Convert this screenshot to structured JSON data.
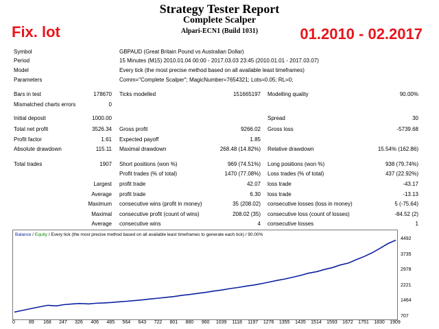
{
  "header": {
    "title": "Strategy Tester Report",
    "subtitle": "Complete Scalper",
    "server": "Alpari-ECN1 (Build 1031)"
  },
  "overlays": {
    "left": "Fix. lot",
    "right": "01.2010 - 02.2017"
  },
  "info": {
    "symbol_label": "Symbol",
    "symbol_value": "GBPAUD (Great Britain Pound vs Australian Dollar)",
    "period_label": "Period",
    "period_value": "15 Minutes (M15) 2010.01.04 00:00 - 2017.03.03 23:45 (2010.01.01 - 2017.03.07)",
    "model_label": "Model",
    "model_value": "Every tick (the most precise method based on all available least timeframes)",
    "parameters_label": "Parameters",
    "parameters_value": "Comm=\"Complete Scalper\"; MagicNumber=7654321; Lots=0.05; RL=0;"
  },
  "stats": {
    "bars_label": "Bars in test",
    "bars_value": "178670",
    "ticks_label": "Ticks modelled",
    "ticks_value": "151665197",
    "quality_label": "Modelling quality",
    "quality_value": "90.00%",
    "mismatch_label": "Mismatched charts errors",
    "mismatch_value": "0",
    "deposit_label": "Initial deposit",
    "deposit_value": "1000.00",
    "spread_label": "Spread",
    "spread_value": "30",
    "netprofit_label": "Total net profit",
    "netprofit_value": "3526.34",
    "grossprofit_label": "Gross profit",
    "grossprofit_value": "9266.02",
    "grossloss_label": "Gross loss",
    "grossloss_value": "-5739.68",
    "pf_label": "Profit factor",
    "pf_value": "1.61",
    "ep_label": "Expected payoff",
    "ep_value": "1.85",
    "absdd_label": "Absolute drawdown",
    "absdd_value": "115.11",
    "maxdd_label": "Maximal drawdown",
    "maxdd_value": "268.48 (14.82%)",
    "reldd_label": "Relative drawdown",
    "reldd_value": "15.54% (162.86)",
    "trades_label": "Total trades",
    "trades_value": "1907",
    "short_label": "Short positions (won %)",
    "short_value": "969 (74.51%)",
    "long_label": "Long positions (won %)",
    "long_value": "938 (79.74%)",
    "profittr_label": "Profit trades (% of total)",
    "profittr_value": "1470 (77.08%)",
    "losstr_label": "Loss trades (% of total)",
    "losstr_value": "437 (22.92%)",
    "largest_label": "Largest",
    "largest_pt_label": "profit trade",
    "largest_pt_value": "42.07",
    "largest_lt_label": "loss trade",
    "largest_lt_value": "-43.17",
    "average_label": "Average",
    "average_pt_label": "profit trade",
    "average_pt_value": "6.30",
    "average_lt_label": "loss trade",
    "average_lt_value": "-13.13",
    "maximum_label": "Maximum",
    "max_cw_label": "consecutive wins (profit in money)",
    "max_cw_value": "35 (208.02)",
    "max_cl_label": "consecutive losses (loss in money)",
    "max_cl_value": "5 (-75.64)",
    "maximal_label": "Maximal",
    "mxl_cp_label": "consecutive profit (count of wins)",
    "mxl_cp_value": "208.02 (35)",
    "mxl_cl_label": "consecutive loss (count of losses)",
    "mxl_cl_value": "-84.52 (2)",
    "avg2_label": "Average",
    "avg_cw_label": "consecutive wins",
    "avg_cw_value": "4",
    "avg_cl_label": "consecutive losses",
    "avg_cl_value": "1"
  },
  "chart_legend": {
    "balance": "Balance",
    "sep1": " / ",
    "equity": "Equity",
    "rest": " / Every tick (the most precise method based on all available least timeframes to generate each tick) / 90.00%"
  },
  "chart_data": {
    "type": "line",
    "x_ticks": [
      "0",
      "89",
      "168",
      "247",
      "326",
      "406",
      "485",
      "564",
      "643",
      "722",
      "801",
      "880",
      "960",
      "1039",
      "1118",
      "1197",
      "1276",
      "1355",
      "1435",
      "1514",
      "1593",
      "1672",
      "1751",
      "1830",
      "1909"
    ],
    "y_ticks": [
      "4492",
      "3735",
      "2978",
      "2221",
      "1464",
      "707"
    ],
    "xlim": [
      0,
      1909
    ],
    "ylim": [
      707,
      4600
    ],
    "series": [
      {
        "name": "Balance",
        "color": "#0b1f9f",
        "x": [
          0,
          40,
          89,
          130,
          168,
          210,
          247,
          290,
          326,
          370,
          406,
          450,
          485,
          520,
          564,
          600,
          643,
          680,
          722,
          760,
          801,
          840,
          880,
          920,
          960,
          1000,
          1039,
          1080,
          1118,
          1160,
          1197,
          1240,
          1276,
          1320,
          1355,
          1400,
          1435,
          1470,
          1514,
          1550,
          1593,
          1630,
          1672,
          1710,
          1751,
          1790,
          1830,
          1870,
          1909
        ],
        "y": [
          1000,
          1080,
          1180,
          1260,
          1330,
          1300,
          1360,
          1400,
          1420,
          1400,
          1430,
          1450,
          1470,
          1500,
          1530,
          1560,
          1600,
          1640,
          1680,
          1720,
          1760,
          1820,
          1860,
          1920,
          1970,
          2030,
          2080,
          2150,
          2200,
          2270,
          2320,
          2400,
          2470,
          2560,
          2620,
          2720,
          2800,
          2900,
          2980,
          3080,
          3180,
          3300,
          3400,
          3560,
          3720,
          3900,
          4120,
          4350,
          4520
        ]
      }
    ]
  }
}
